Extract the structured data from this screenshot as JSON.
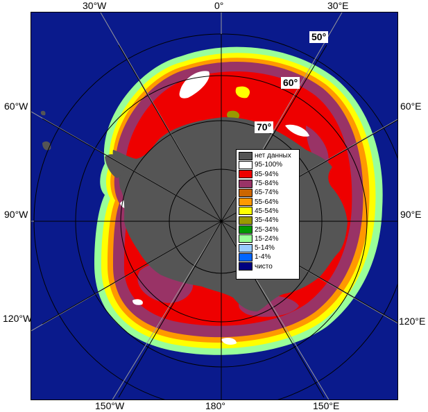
{
  "map": {
    "edge_labels": {
      "top": [
        "30°W",
        "0°",
        "30°E"
      ],
      "left": [
        "60°W",
        "90°W",
        "120°W"
      ],
      "right": [
        "60°E",
        "90°E",
        "120°E"
      ],
      "bottom": [
        "150°W",
        "180°",
        "150°E"
      ]
    },
    "latitude_labels": [
      "50°",
      "60°",
      "70°"
    ],
    "colors": {
      "ocean": "#0a1a8c",
      "land": "#555555",
      "grid": "#9a9a9a",
      "circle": "#000000"
    }
  },
  "legend": {
    "items": [
      {
        "label": "нет данных",
        "color": "#555555"
      },
      {
        "label": "95-100%",
        "color": "#ffffff"
      },
      {
        "label": "85-94%",
        "color": "#ee0000"
      },
      {
        "label": "75-84%",
        "color": "#993366"
      },
      {
        "label": "65-74%",
        "color": "#cc6600"
      },
      {
        "label": "55-64%",
        "color": "#ff9900"
      },
      {
        "label": "45-54%",
        "color": "#ffff00"
      },
      {
        "label": "35-44%",
        "color": "#999900"
      },
      {
        "label": "25-34%",
        "color": "#009900"
      },
      {
        "label": "15-24%",
        "color": "#99ff99"
      },
      {
        "label": "5-14%",
        "color": "#99ccff"
      },
      {
        "label": "1-4%",
        "color": "#0066ff"
      },
      {
        "label": "чисто",
        "color": "#000080"
      }
    ]
  }
}
